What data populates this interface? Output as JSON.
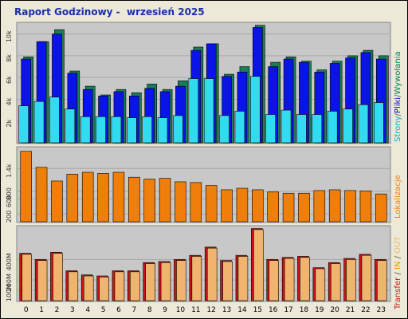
{
  "title": "Raport Godzinowy -  wrzesień 2025",
  "colors": {
    "background": "#ece9d8",
    "panel": "#c8c8c8",
    "visits": "#1a7e58",
    "pages": "#0a14e6",
    "files": "#32dcf0",
    "sites": "#f07e0a",
    "traffic_in": "#cc1414",
    "traffic_out": "#f0b46e",
    "label_pages": "#00b4c8",
    "label_files": "#0000cc",
    "label_visits": "#00805a"
  },
  "labels": {
    "pages": "Strony",
    "files": "Pliki",
    "visits": "Wywołania",
    "sites": "Lokalizacje",
    "traffic": "Transfer",
    "in": "IN",
    "out": "OUT",
    "sep1": " / ",
    "sep2": "/"
  },
  "chart_data": [
    {
      "type": "bar",
      "categories": [
        "0",
        "1",
        "2",
        "3",
        "4",
        "5",
        "6",
        "7",
        "8",
        "9",
        "10",
        "11",
        "12",
        "13",
        "14",
        "15",
        "16",
        "17",
        "18",
        "19",
        "20",
        "21",
        "22",
        "23"
      ],
      "ylim": [
        0,
        11000
      ],
      "yticks": [
        "2k",
        "4k",
        "6k",
        "8k",
        "10k"
      ],
      "ytick_values": [
        2000,
        4000,
        6000,
        8000,
        10000
      ],
      "series": [
        {
          "name": "Wywołania",
          "values": [
            7900,
            9300,
            10400,
            6600,
            5200,
            4400,
            4900,
            4600,
            5400,
            4900,
            5700,
            8800,
            9100,
            6300,
            7000,
            10800,
            7400,
            7900,
            7500,
            6700,
            7500,
            8000,
            8500,
            8000
          ]
        },
        {
          "name": "Pliki",
          "values": [
            7700,
            9300,
            10000,
            6400,
            4900,
            4300,
            4700,
            4300,
            5000,
            4700,
            5200,
            8500,
            9100,
            6100,
            6500,
            10600,
            7000,
            7700,
            7400,
            6500,
            7300,
            7800,
            8300,
            7700
          ]
        },
        {
          "name": "Strony",
          "values": [
            3400,
            3800,
            4200,
            3100,
            2400,
            2400,
            2400,
            2300,
            2400,
            2300,
            2500,
            5900,
            5900,
            2500,
            2900,
            6100,
            2600,
            3000,
            2600,
            2600,
            2900,
            3100,
            3500,
            3700
          ]
        }
      ]
    },
    {
      "type": "bar",
      "categories": [
        "0",
        "1",
        "2",
        "3",
        "4",
        "5",
        "6",
        "7",
        "8",
        "9",
        "10",
        "11",
        "12",
        "13",
        "14",
        "15",
        "16",
        "17",
        "18",
        "19",
        "20",
        "21",
        "22",
        "23"
      ],
      "ylim": [
        0,
        1950
      ],
      "yticks": [
        "200",
        "600",
        "800",
        "1.4k"
      ],
      "ytick_values": [
        200,
        600,
        800,
        1400
      ],
      "series": [
        {
          "name": "Lokalizacje",
          "values": [
            1850,
            1430,
            1070,
            1250,
            1300,
            1270,
            1300,
            1170,
            1120,
            1140,
            1050,
            1030,
            950,
            840,
            880,
            840,
            780,
            750,
            750,
            820,
            840,
            820,
            810,
            730
          ]
        }
      ]
    },
    {
      "type": "bar",
      "categories": [
        "0",
        "1",
        "2",
        "3",
        "4",
        "5",
        "6",
        "7",
        "8",
        "9",
        "10",
        "11",
        "12",
        "13",
        "14",
        "15",
        "16",
        "17",
        "18",
        "19",
        "20",
        "21",
        "22",
        "23"
      ],
      "ylim": [
        0,
        720
      ],
      "yticks": [
        "100M",
        "200M",
        "400M"
      ],
      "ytick_values": [
        100,
        200,
        400
      ],
      "series": [
        {
          "name": "IN",
          "values": [
            460,
            400,
            470,
            290,
            250,
            240,
            290,
            290,
            370,
            380,
            400,
            440,
            520,
            390,
            440,
            700,
            400,
            420,
            430,
            320,
            370,
            410,
            450,
            400
          ]
        },
        {
          "name": "OUT",
          "values": [
            450,
            390,
            460,
            280,
            240,
            230,
            280,
            280,
            360,
            370,
            390,
            430,
            510,
            380,
            430,
            690,
            390,
            410,
            420,
            310,
            360,
            400,
            440,
            390
          ]
        }
      ]
    }
  ]
}
